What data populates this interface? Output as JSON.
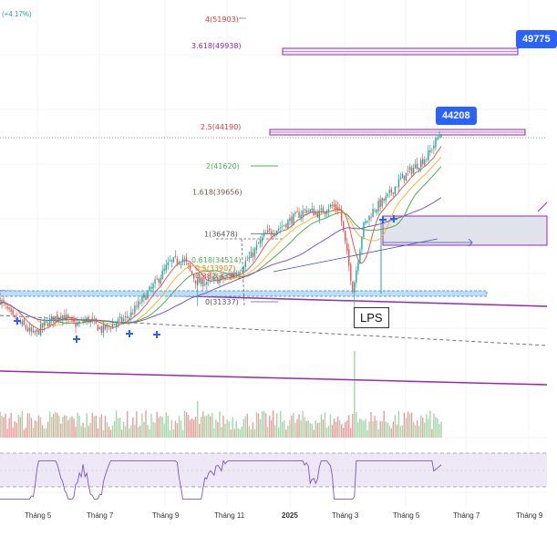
{
  "header": {
    "change_label": "(+4.17%)"
  },
  "price_tags": {
    "current": "44208",
    "target": "49775"
  },
  "lps_label": "LPS",
  "colors": {
    "up": "#26a69a",
    "down": "#ef5350",
    "channel": "#9c27b0",
    "ma_fast": "#ef5350",
    "ma_mid": "#f7b731",
    "ma_slow": "#4caf50",
    "ma_long": "#7e57c2",
    "fib_box": "#e1e3ea",
    "tag": "#2962ff"
  },
  "chart_data": {
    "type": "candlestick",
    "fib_levels": [
      {
        "label": "4(51903)",
        "value": 51903
      },
      {
        "label": "3.618(49938)",
        "value": 49938
      },
      {
        "label": "2.5(44190)",
        "value": 44190
      },
      {
        "label": "2(41620)",
        "value": 41620
      },
      {
        "label": "1.618(39656)",
        "value": 39656
      },
      {
        "label": "1(36478)",
        "value": 36478
      },
      {
        "label": "0.618(34514)",
        "value": 34514
      },
      {
        "label": "0.5(33907)",
        "value": 33907
      },
      {
        "label": "0.382(33301)",
        "value": 33301
      },
      {
        "label": "0(31337)",
        "value": 31337
      }
    ],
    "x_ticks": [
      {
        "label": "Tháng 5",
        "bold": false
      },
      {
        "label": "Tháng 7",
        "bold": false
      },
      {
        "label": "Tháng 9",
        "bold": false
      },
      {
        "label": "Tháng 11",
        "bold": false
      },
      {
        "label": "2025",
        "bold": true
      },
      {
        "label": "Tháng 3",
        "bold": false
      },
      {
        "label": "Tháng 5",
        "bold": false
      },
      {
        "label": "Tháng 7",
        "bold": false
      },
      {
        "label": "Tháng 9",
        "bold": false
      }
    ],
    "price_path": [
      [
        0,
        31500
      ],
      [
        0.04,
        30000
      ],
      [
        0.07,
        29500
      ],
      [
        0.1,
        28800
      ],
      [
        0.14,
        29800
      ],
      [
        0.18,
        30400
      ],
      [
        0.22,
        29600
      ],
      [
        0.26,
        30000
      ],
      [
        0.3,
        29200
      ],
      [
        0.34,
        29700
      ],
      [
        0.38,
        30200
      ],
      [
        0.42,
        31500
      ],
      [
        0.46,
        32800
      ],
      [
        0.5,
        34300
      ],
      [
        0.54,
        34600
      ],
      [
        0.58,
        32800
      ],
      [
        0.62,
        32900
      ],
      [
        0.66,
        33100
      ],
      [
        0.7,
        33700
      ],
      [
        0.74,
        34800
      ],
      [
        0.78,
        36400
      ],
      [
        0.82,
        36900
      ],
      [
        0.86,
        37600
      ],
      [
        0.9,
        38300
      ],
      [
        0.94,
        38000
      ],
      [
        0.97,
        38600
      ],
      [
        1.0,
        38400
      ],
      [
        1.04,
        32200
      ],
      [
        1.07,
        37000
      ],
      [
        1.1,
        38300
      ],
      [
        1.14,
        39200
      ],
      [
        1.18,
        40600
      ],
      [
        1.22,
        41500
      ],
      [
        1.26,
        42400
      ],
      [
        1.28,
        43300
      ],
      [
        1.3,
        44208
      ]
    ]
  }
}
